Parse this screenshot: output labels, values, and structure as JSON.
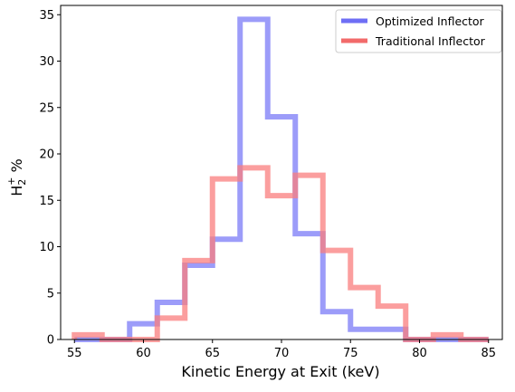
{
  "chart_data": {
    "type": "histogram",
    "xlabel": "Kinetic Energy at Exit (keV)",
    "ylabel_main": "H",
    "ylabel_sub": "2",
    "ylabel_sup": "+",
    "ylabel_rest": " %",
    "xlim": [
      54,
      86
    ],
    "ylim": [
      0,
      36
    ],
    "xticks": [
      55,
      60,
      65,
      70,
      75,
      80,
      85
    ],
    "yticks": [
      0,
      5,
      10,
      15,
      20,
      25,
      30,
      35
    ],
    "legend_position": "top-right",
    "bin_edges": [
      55,
      57,
      59,
      61,
      63,
      65,
      67,
      69,
      71,
      73,
      75,
      77,
      79,
      81,
      83,
      85
    ],
    "series": [
      {
        "name": "Optimized Inflector",
        "color": "#7b7bf7",
        "legend_color": "#6e6ef5",
        "values": [
          0,
          0,
          1.7,
          4.0,
          8.0,
          10.8,
          34.5,
          24.0,
          11.4,
          3.0,
          1.1,
          1.1,
          0,
          0,
          0
        ]
      },
      {
        "name": "Traditional Inflector",
        "color": "#fa7d7d",
        "legend_color": "#f26a6a",
        "values": [
          0.5,
          0,
          0,
          2.3,
          8.5,
          17.3,
          18.5,
          15.5,
          17.7,
          9.6,
          5.6,
          3.6,
          0,
          0.5,
          0
        ]
      }
    ]
  }
}
